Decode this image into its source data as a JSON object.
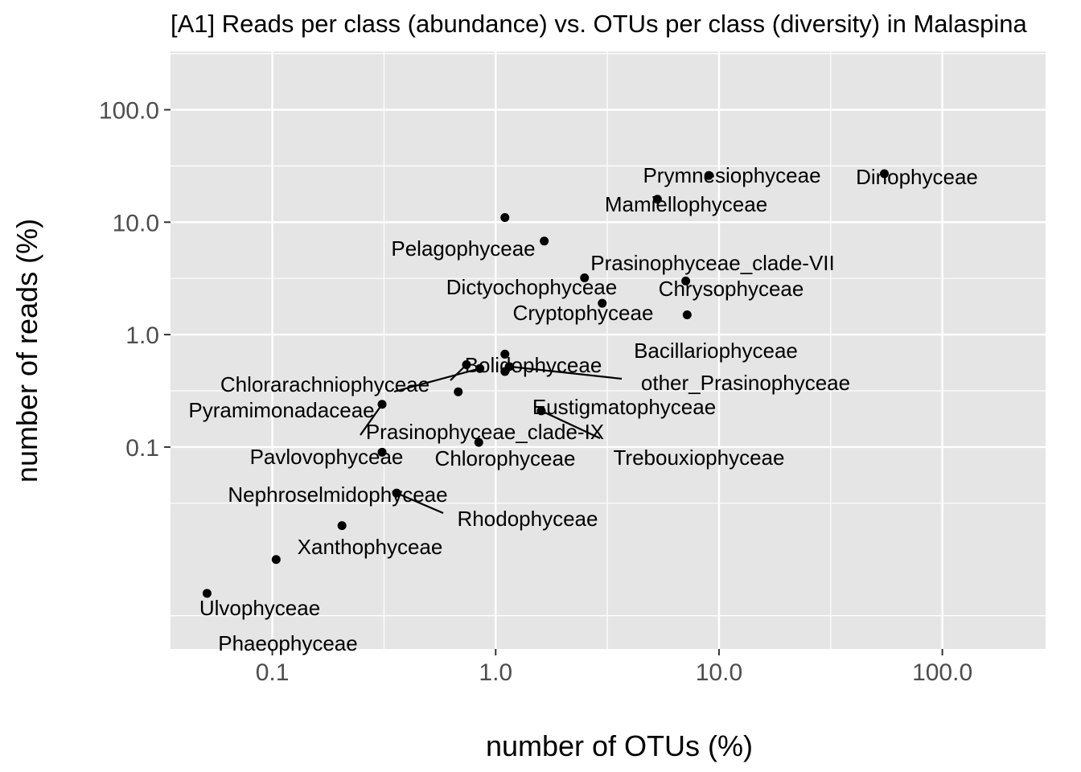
{
  "chart_data": {
    "type": "scatter",
    "title": "[A1] Reads per class (abundance) vs. OTUs per class (diversity) in Malaspina",
    "xlabel": "number of OTUs (%)",
    "ylabel": "number of reads (%)",
    "x_scale": "log10",
    "y_scale": "log10",
    "xlim": [
      0.035,
      290
    ],
    "ylim": [
      0.0016,
      330
    ],
    "x_ticks": [
      0.1,
      1,
      10,
      100
    ],
    "x_tick_labels": [
      "0.1",
      "1.0",
      "10.0",
      "100.0"
    ],
    "y_ticks": [
      0.1,
      1,
      10,
      100
    ],
    "y_tick_labels": [
      "0.1",
      "1.0",
      "10.0",
      "100.0"
    ],
    "grid": true,
    "legend": "none",
    "point_color": "#000000",
    "panel_color": "#e5e5e5",
    "grid_color": "#ffffff",
    "points": [
      {
        "label": "Dinophyceae",
        "x": 55,
        "y": 27
      },
      {
        "label": "Prymnesiophyceae",
        "x": 9,
        "y": 26
      },
      {
        "label": "Mamiellophyceae",
        "x": 5.3,
        "y": 16
      },
      {
        "label": "Pelagophyceae",
        "x": 1.1,
        "y": 11
      },
      {
        "label": "Prasinophyceae_clade-VII",
        "x": 1.65,
        "y": 6.8
      },
      {
        "label": "Dictyochophyceae",
        "x": 2.5,
        "y": 3.2
      },
      {
        "label": "Chrysophyceae",
        "x": 7.1,
        "y": 3.0
      },
      {
        "label": "Cryptophyceae",
        "x": 3,
        "y": 1.9
      },
      {
        "label": "Bacillariophyceae",
        "x": 7.2,
        "y": 1.5
      },
      {
        "label": "Bolidophyceae",
        "x": 1.1,
        "y": 0.67
      },
      {
        "label": "Chlorarachniophyceae",
        "x": 0.74,
        "y": 0.54
      },
      {
        "label": "other_Prasinophyceae",
        "x": 1.15,
        "y": 0.52
      },
      {
        "label": "Pyramimonadaceae",
        "x": 0.85,
        "y": 0.5
      },
      {
        "label": "Eustigmatophyceae",
        "x": 1.1,
        "y": 0.47
      },
      {
        "label": "Prasinophyceae_clade-IX",
        "x": 0.68,
        "y": 0.31
      },
      {
        "label": "Pavlovophyceae",
        "x": 0.31,
        "y": 0.24
      },
      {
        "label": "Trebouxiophyceae",
        "x": 1.6,
        "y": 0.21
      },
      {
        "label": "Chlorophyceae",
        "x": 0.84,
        "y": 0.11
      },
      {
        "label": "Nephroselmidophyceae",
        "x": 0.31,
        "y": 0.09
      },
      {
        "label": "Rhodophyceae",
        "x": 0.36,
        "y": 0.039
      },
      {
        "label": "Xanthophyceae",
        "x": 0.205,
        "y": 0.02
      },
      {
        "label": "Ulvophyceae",
        "x": 0.104,
        "y": 0.01
      },
      {
        "label": "Phaeophyceae",
        "x": 0.051,
        "y": 0.005
      }
    ]
  }
}
